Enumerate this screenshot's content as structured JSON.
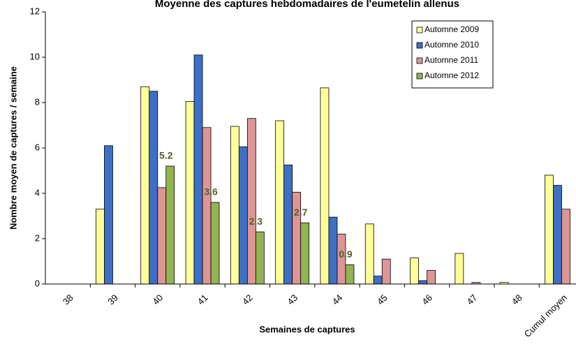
{
  "chart_data": {
    "type": "bar",
    "title": "Moyenne des captures hebdomadaires de l'eumetelin allenus",
    "x_label": "Semaines de captures",
    "y_label": "Nombre moyen de captures / semaine",
    "categories": [
      "38",
      "39",
      "40",
      "41",
      "42",
      "43",
      "44",
      "45",
      "46",
      "47",
      "48",
      "Cumul moyen"
    ],
    "series": [
      {
        "name": "Automne 2009",
        "color": "#ffff99",
        "values": [
          null,
          3.3,
          8.7,
          8.05,
          6.95,
          7.2,
          8.65,
          2.65,
          1.15,
          1.35,
          0.07,
          4.8
        ]
      },
      {
        "name": "Automne 2010",
        "color": "#3d6fc6",
        "values": [
          null,
          6.1,
          8.5,
          10.1,
          6.05,
          5.25,
          2.95,
          0.35,
          0.15,
          null,
          null,
          4.35
        ]
      },
      {
        "name": "Automne 2011",
        "color": "#dd9595",
        "values": [
          null,
          null,
          4.25,
          6.9,
          7.3,
          4.05,
          2.2,
          1.1,
          0.6,
          0.07,
          null,
          3.3
        ]
      },
      {
        "name": "Automne 2012",
        "color": "#92b452",
        "values": [
          null,
          null,
          5.2,
          3.6,
          2.3,
          2.7,
          0.85,
          null,
          null,
          null,
          null,
          null
        ],
        "value_labels": [
          null,
          null,
          "5.2",
          "3.6",
          "2.3",
          "2.7",
          "0.9",
          null,
          null,
          null,
          null,
          null
        ]
      }
    ],
    "ylim": [
      0,
      12
    ],
    "yticks": [
      0,
      2,
      4,
      6,
      8,
      10,
      12
    ],
    "grid": false,
    "legend": "upper right"
  }
}
